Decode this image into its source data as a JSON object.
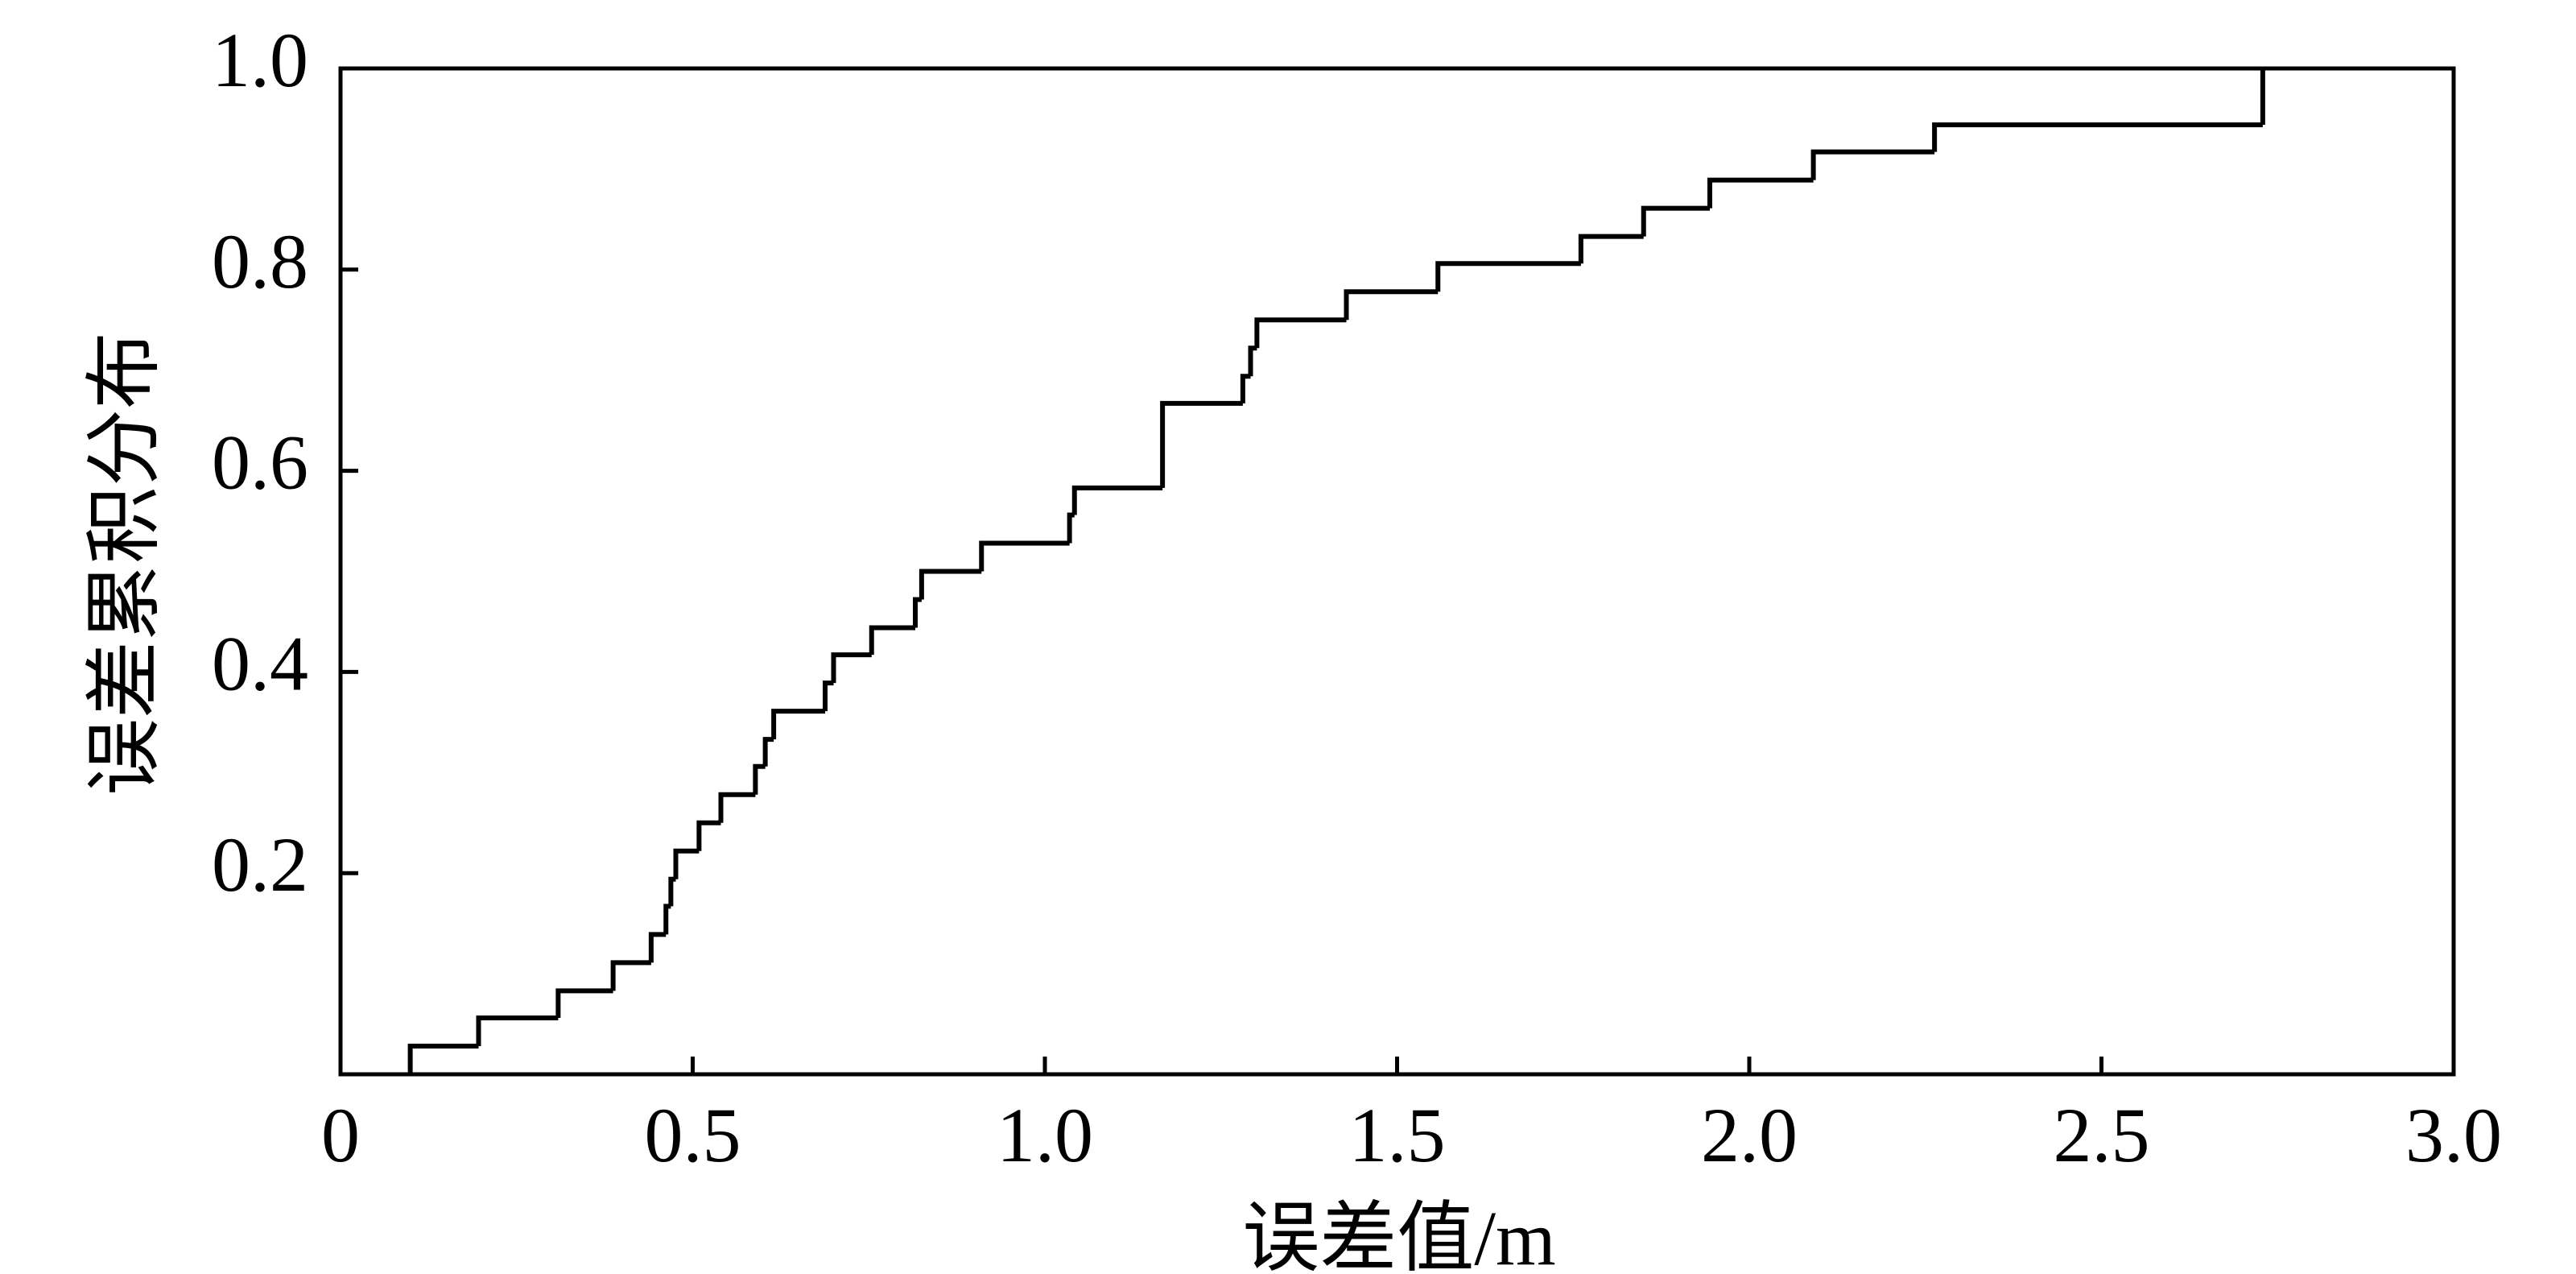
{
  "chart_data": {
    "type": "step",
    "xlabel": "误差值/m",
    "ylabel": "误差累积分布",
    "color": "#000000",
    "x": [
      0.099,
      0.196,
      0.309,
      0.387,
      0.441,
      0.462,
      0.469,
      0.476,
      0.509,
      0.54,
      0.589,
      0.603,
      0.615,
      0.688,
      0.7,
      0.754,
      0.816,
      0.825,
      0.91,
      1.035,
      1.042,
      1.167,
      1.281,
      1.292,
      1.301,
      1.428,
      1.558,
      1.761,
      1.85,
      1.944,
      2.091,
      2.263,
      2.729
    ],
    "values": [
      0.028,
      0.056,
      0.083,
      0.111,
      0.139,
      0.167,
      0.194,
      0.222,
      0.25,
      0.278,
      0.306,
      0.333,
      0.361,
      0.389,
      0.417,
      0.444,
      0.472,
      0.5,
      0.528,
      0.556,
      0.583,
      0.667,
      0.694,
      0.722,
      0.75,
      0.778,
      0.806,
      0.833,
      0.861,
      0.889,
      0.917,
      0.944,
      1.0
    ],
    "xlim": [
      0,
      3
    ],
    "ylim": [
      0,
      1
    ],
    "xticks": [
      0,
      0.5,
      {
        "value": 1,
        "label": "1.0"
      },
      1.5,
      {
        "value": 2,
        "label": "2.0"
      },
      2.5,
      {
        "value": 3,
        "label": "3.0"
      }
    ],
    "yticks": [
      0.2,
      0.4,
      0.6,
      0.8,
      {
        "value": 1,
        "label": "1.0"
      }
    ]
  }
}
